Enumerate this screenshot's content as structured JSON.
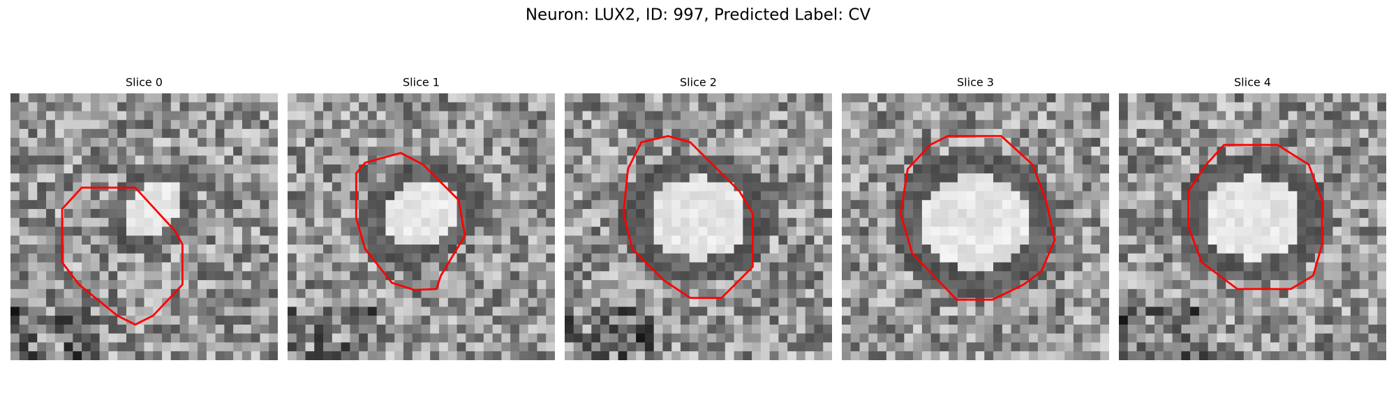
{
  "title": "Neuron: LUX2, ID: 997, Predicted Label: CV",
  "panels": [
    {
      "title": "Slice 0"
    },
    {
      "title": "Slice 1"
    },
    {
      "title": "Slice 2"
    },
    {
      "title": "Slice 3"
    },
    {
      "title": "Slice 4"
    }
  ]
}
